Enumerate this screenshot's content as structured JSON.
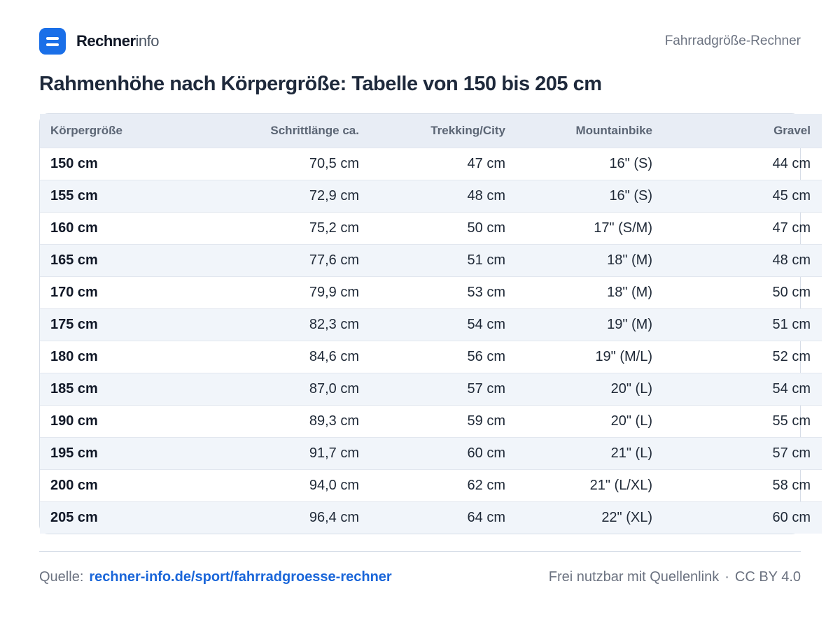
{
  "header": {
    "brand_strong": "Rechner",
    "brand_light": "info",
    "tool_name": "Fahrradgröße-Rechner"
  },
  "title": "Rahmenhöhe nach Körpergröße: Tabelle von 150 bis 205 cm",
  "table": {
    "columns": [
      "Körpergröße",
      "Schrittlänge ca.",
      "Trekking/City",
      "Mountainbike",
      "Gravel"
    ],
    "rows": [
      [
        "150 cm",
        "70,5 cm",
        "47 cm",
        "16\" (S)",
        "44 cm"
      ],
      [
        "155 cm",
        "72,9 cm",
        "48 cm",
        "16\" (S)",
        "45 cm"
      ],
      [
        "160 cm",
        "75,2 cm",
        "50 cm",
        "17\" (S/M)",
        "47 cm"
      ],
      [
        "165 cm",
        "77,6 cm",
        "51 cm",
        "18\" (M)",
        "48 cm"
      ],
      [
        "170 cm",
        "79,9 cm",
        "53 cm",
        "18\" (M)",
        "50 cm"
      ],
      [
        "175 cm",
        "82,3 cm",
        "54 cm",
        "19\" (M)",
        "51 cm"
      ],
      [
        "180 cm",
        "84,6 cm",
        "56 cm",
        "19\" (M/L)",
        "52 cm"
      ],
      [
        "185 cm",
        "87,0 cm",
        "57 cm",
        "20\" (L)",
        "54 cm"
      ],
      [
        "190 cm",
        "89,3 cm",
        "59 cm",
        "20\" (L)",
        "55 cm"
      ],
      [
        "195 cm",
        "91,7 cm",
        "60 cm",
        "21\" (L)",
        "57 cm"
      ],
      [
        "200 cm",
        "94,0 cm",
        "62 cm",
        "21\" (L/XL)",
        "58 cm"
      ],
      [
        "205 cm",
        "96,4 cm",
        "64 cm",
        "22\" (XL)",
        "60 cm"
      ]
    ]
  },
  "footer": {
    "source_label": "Quelle:",
    "source_link": "rechner-info.de/sport/fahrradgroesse-rechner",
    "license_text": "Frei nutzbar mit Quellenlink",
    "separator": "·",
    "license": "CC BY 4.0"
  },
  "colors": {
    "accent": "#1a6fe8",
    "link": "#1a66d9",
    "header_row": "#e8edf5",
    "stripe_row": "#f1f5fa"
  }
}
